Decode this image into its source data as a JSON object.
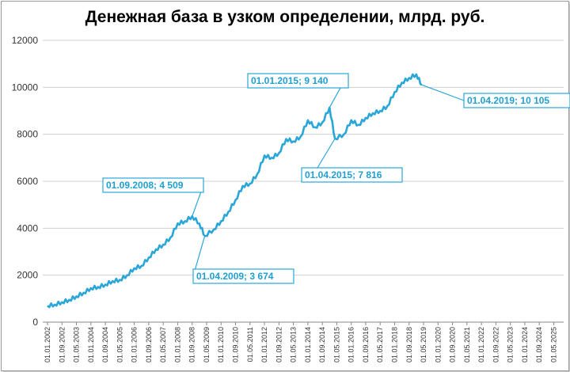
{
  "chart_data": {
    "type": "line",
    "title": "Денежная база в узком определении, млрд. руб.",
    "xlabel": "",
    "ylabel": "",
    "ylim": [
      0,
      12000
    ],
    "grid": true,
    "legend": "none",
    "color": "#2aa6d8",
    "yticks": [
      "0",
      "2000",
      "4000",
      "6000",
      "8000",
      "10000",
      "12000"
    ],
    "xticks": [
      "01.01.2002",
      "01.09.2002",
      "01.05.2003",
      "01.01.2004",
      "01.09.2004",
      "01.05.2005",
      "01.01.2006",
      "01.09.2006",
      "01.05.2007",
      "01.01.2008",
      "01.09.2008",
      "01.05.2009",
      "01.01.2010",
      "01.09.2010",
      "01.05.2011",
      "01.01.2012",
      "01.09.2012",
      "01.05.2013",
      "01.01.2014",
      "01.09.2014",
      "01.05.2015",
      "01.01.2016",
      "01.09.2016",
      "01.05.2017",
      "01.01.2018",
      "01.09.2018",
      "01.05.2019",
      "01.01.2020",
      "01.09.2020",
      "01.05.2021",
      "01.01.2022",
      "01.09.2022",
      "01.05.2023",
      "01.01.2024",
      "01.09.2024",
      "01.05.2025"
    ],
    "series": [
      {
        "x": [
          "01.01.2002",
          "01.05.2002",
          "01.09.2002",
          "01.01.2003",
          "01.05.2003",
          "01.09.2003",
          "01.01.2004",
          "01.05.2004",
          "01.09.2004",
          "01.01.2005",
          "01.05.2005",
          "01.09.2005",
          "01.01.2006",
          "01.05.2006",
          "01.09.2006",
          "01.01.2007",
          "01.05.2007",
          "01.09.2007",
          "01.01.2008",
          "01.05.2008",
          "01.09.2008",
          "01.01.2009",
          "01.04.2009",
          "01.09.2009",
          "01.01.2010",
          "01.05.2010",
          "01.09.2010",
          "01.01.2011",
          "01.05.2011",
          "01.09.2011",
          "01.01.2012",
          "01.05.2012",
          "01.09.2012",
          "01.01.2013",
          "01.05.2013",
          "01.09.2013",
          "01.01.2014",
          "01.05.2014",
          "01.09.2014",
          "01.01.2015",
          "01.04.2015",
          "01.09.2015",
          "01.01.2016",
          "01.05.2016",
          "01.09.2016",
          "01.01.2017",
          "01.05.2017",
          "01.09.2017",
          "01.01.2018",
          "01.05.2018",
          "01.09.2018",
          "01.01.2019",
          "01.04.2019"
        ],
        "values": [
          700,
          750,
          850,
          950,
          1100,
          1250,
          1450,
          1500,
          1600,
          1750,
          1800,
          2000,
          2300,
          2400,
          2750,
          3100,
          3300,
          3600,
          4200,
          4300,
          4509,
          4200,
          3674,
          3950,
          4300,
          4700,
          5200,
          5800,
          5900,
          6300,
          7100,
          7000,
          7200,
          7800,
          7700,
          7900,
          8600,
          8300,
          8500,
          9140,
          7816,
          8000,
          8600,
          8400,
          8700,
          8900,
          9000,
          9200,
          9800,
          10200,
          10400,
          10550,
          10105
        ]
      }
    ],
    "annotations": [
      {
        "x": "01.09.2008",
        "y": 4509,
        "text": "01.09.2008; 4 509"
      },
      {
        "x": "01.04.2009",
        "y": 3674,
        "text": "01.04.2009; 3 674"
      },
      {
        "x": "01.01.2015",
        "y": 9140,
        "text": "01.01.2015; 9 140"
      },
      {
        "x": "01.04.2015",
        "y": 7816,
        "text": "01.04.2015; 7 816"
      },
      {
        "x": "01.04.2019",
        "y": 10105,
        "text": "01.04.2019; 10 105"
      }
    ]
  }
}
